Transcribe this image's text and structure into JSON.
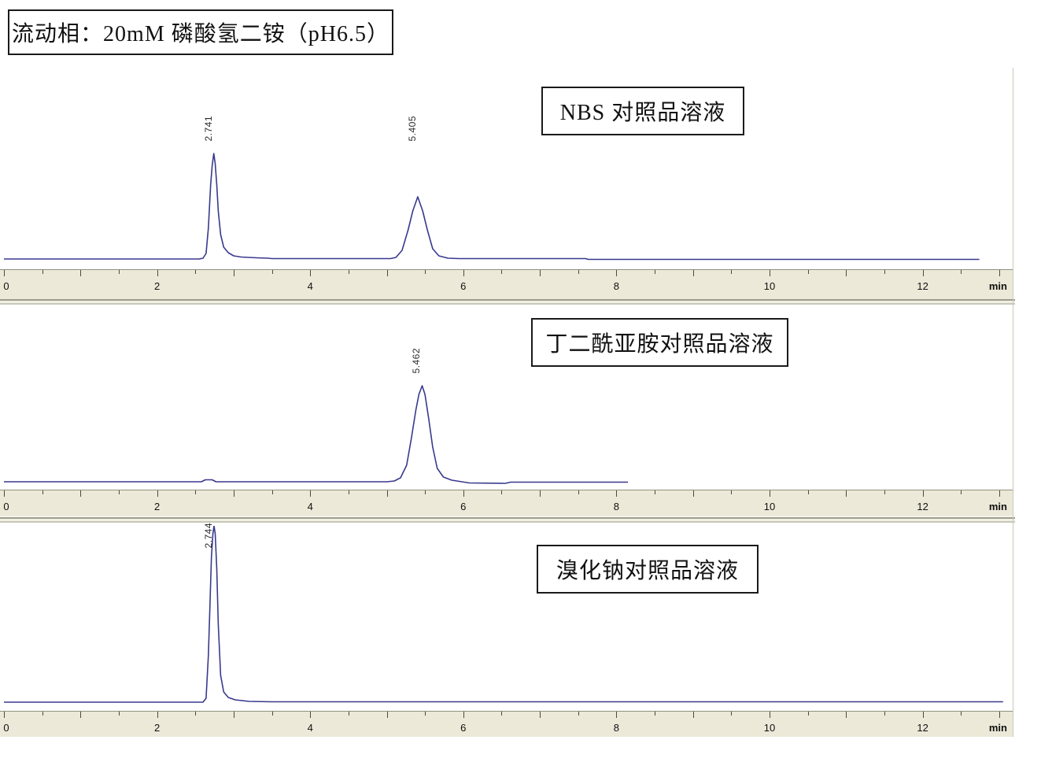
{
  "header": {
    "mobile_phase_label": "流动相：20mM 磷酸氢二铵（pH6.5）"
  },
  "colors": {
    "trace": "#39398e",
    "axis_background": "#ece9d8"
  },
  "axis": {
    "unit_label": "min",
    "major_tick_labels": [
      0,
      2,
      4,
      6,
      8,
      10,
      12
    ],
    "minor_step_min": 0.5,
    "max_min": 13
  },
  "chart_data": [
    {
      "type": "line",
      "title": "NBS 对照品溶液",
      "x_unit": "min",
      "peaks": [
        {
          "rt": 2.741,
          "label": "2.741"
        },
        {
          "rt": 5.405,
          "label": "5.405"
        }
      ],
      "run_end_min": 12.74,
      "trace": [
        [
          0,
          1
        ],
        [
          2.55,
          1
        ],
        [
          2.6,
          2
        ],
        [
          2.64,
          8
        ],
        [
          2.67,
          40
        ],
        [
          2.7,
          95
        ],
        [
          2.72,
          120
        ],
        [
          2.741,
          135
        ],
        [
          2.76,
          122
        ],
        [
          2.78,
          95
        ],
        [
          2.8,
          62
        ],
        [
          2.83,
          32
        ],
        [
          2.87,
          16
        ],
        [
          2.93,
          9
        ],
        [
          3.0,
          5
        ],
        [
          3.1,
          3.5
        ],
        [
          3.3,
          2.5
        ],
        [
          3.45,
          2
        ],
        [
          3.5,
          1.5
        ],
        [
          5.05,
          1.5
        ],
        [
          5.12,
          3
        ],
        [
          5.2,
          12
        ],
        [
          5.28,
          38
        ],
        [
          5.34,
          62
        ],
        [
          5.405,
          80
        ],
        [
          5.47,
          62
        ],
        [
          5.53,
          38
        ],
        [
          5.6,
          14
        ],
        [
          5.68,
          5
        ],
        [
          5.8,
          2
        ],
        [
          5.95,
          1.5
        ],
        [
          7.6,
          1.5
        ],
        [
          7.63,
          0.5
        ],
        [
          12.74,
          0.5
        ]
      ]
    },
    {
      "type": "line",
      "title": "丁二酰亚胺对照品溶液",
      "x_unit": "min",
      "peaks": [
        {
          "rt": 5.462,
          "label": "5.462"
        }
      ],
      "run_end_min": 8.15,
      "trace": [
        [
          0,
          1
        ],
        [
          2.58,
          1
        ],
        [
          2.63,
          3.5
        ],
        [
          2.72,
          3.5
        ],
        [
          2.77,
          1
        ],
        [
          5.0,
          1
        ],
        [
          5.1,
          2
        ],
        [
          5.18,
          6
        ],
        [
          5.26,
          22
        ],
        [
          5.32,
          55
        ],
        [
          5.38,
          92
        ],
        [
          5.42,
          112
        ],
        [
          5.462,
          123
        ],
        [
          5.5,
          112
        ],
        [
          5.55,
          80
        ],
        [
          5.6,
          45
        ],
        [
          5.66,
          18
        ],
        [
          5.74,
          7
        ],
        [
          5.85,
          3
        ],
        [
          5.98,
          1
        ],
        [
          6.08,
          -0.5
        ],
        [
          6.55,
          -1
        ],
        [
          6.62,
          0.5
        ],
        [
          8.15,
          0.5
        ]
      ]
    },
    {
      "type": "line",
      "title": "溴化钠对照品溶液",
      "x_unit": "min",
      "peaks": [
        {
          "rt": 2.744,
          "label": "2.744"
        }
      ],
      "run_end_min": 13.05,
      "trace": [
        [
          0,
          1
        ],
        [
          2.6,
          1
        ],
        [
          2.64,
          6
        ],
        [
          2.67,
          60
        ],
        [
          2.69,
          120
        ],
        [
          2.71,
          185
        ],
        [
          2.73,
          215
        ],
        [
          2.744,
          225
        ],
        [
          2.76,
          215
        ],
        [
          2.78,
          170
        ],
        [
          2.8,
          100
        ],
        [
          2.83,
          35
        ],
        [
          2.87,
          14
        ],
        [
          2.93,
          7
        ],
        [
          3.02,
          4
        ],
        [
          3.2,
          2
        ],
        [
          3.5,
          1.5
        ],
        [
          13.05,
          1.5
        ]
      ]
    }
  ]
}
